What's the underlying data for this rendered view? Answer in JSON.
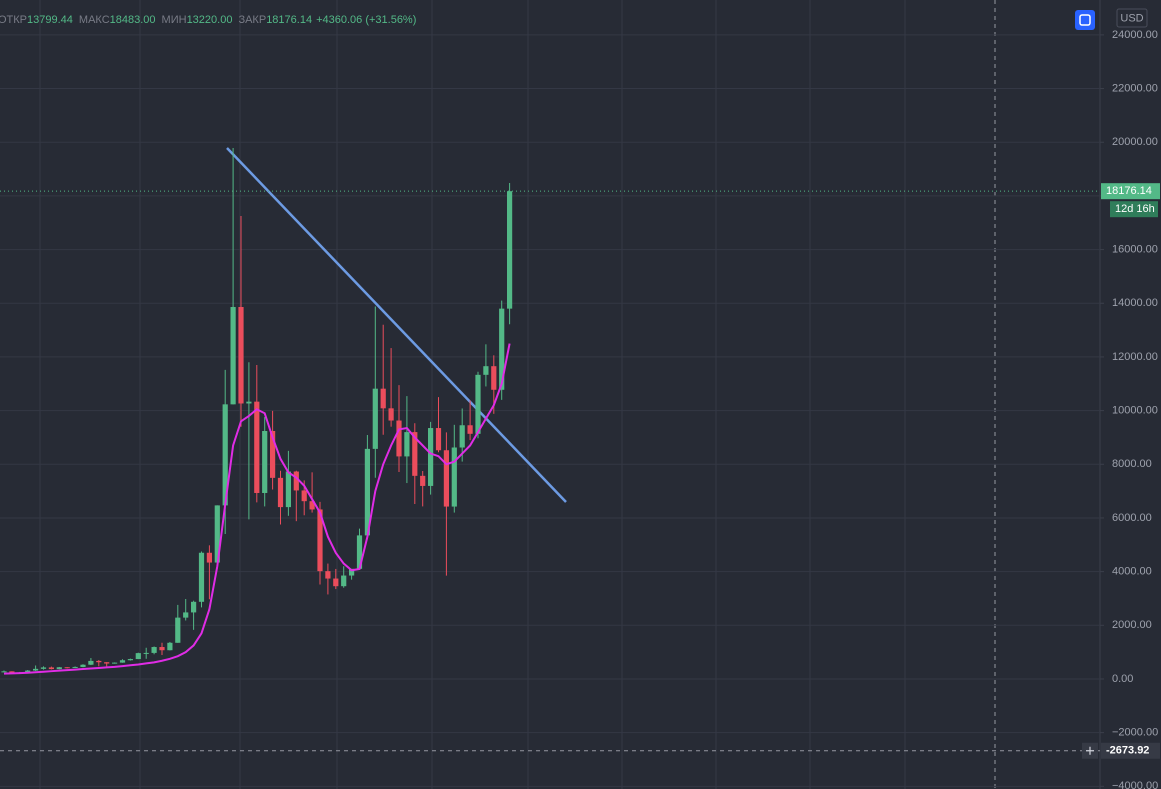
{
  "chart_data": {
    "type": "candlestick",
    "header": [
      {
        "label": "ОТКР",
        "value": "13799.44"
      },
      {
        "label": "МАКС",
        "value": "18483.00"
      },
      {
        "label": "МИН",
        "value": "13220.00"
      },
      {
        "label": "ЗАКР",
        "value": "18176.14"
      }
    ],
    "change": "+4360.06 (+31.56%)",
    "currency": "USD",
    "open": [
      263,
      284,
      230,
      236,
      314,
      377,
      430,
      368,
      437,
      416,
      448,
      531,
      673,
      624,
      575,
      609,
      698,
      742,
      964,
      971,
      1190,
      1071,
      1348,
      2286,
      2480,
      2875,
      4703,
      4338,
      6468,
      10233,
      13860,
      10265,
      10334,
      6930,
      9240,
      7494,
      6404,
      7730,
      7025,
      6625,
      6317,
      4017,
      3742,
      3457,
      3854,
      4105,
      5350,
      8574,
      10817,
      10085,
      9630,
      8293,
      9199,
      7569,
      7193,
      9350,
      8523,
      6424,
      8625,
      9454,
      9135,
      11333,
      11655,
      10776,
      13799.44
    ],
    "high": [
      315,
      286,
      262,
      334,
      502,
      468,
      462,
      448,
      439,
      467,
      548,
      780,
      704,
      627,
      616,
      733,
      758,
      980,
      1163,
      1212,
      1350,
      1380,
      2760,
      2980,
      2917,
      4750,
      4980,
      6470,
      11518,
      19783,
      17250,
      11800,
      11700,
      9760,
      9990,
      7760,
      8500,
      7760,
      7400,
      7700,
      6600,
      4300,
      4100,
      4200,
      4100,
      5600,
      9090,
      13880,
      13200,
      12330,
      10950,
      10540,
      9530,
      7750,
      9580,
      10500,
      9190,
      9470,
      10080,
      10380,
      11450,
      12470,
      12060,
      14100,
      18483
    ],
    "low": [
      253,
      199,
      225,
      236,
      298,
      348,
      354,
      364,
      395,
      412,
      436,
      518,
      470,
      467,
      571,
      604,
      685,
      739,
      752,
      920,
      892,
      1064,
      1348,
      2180,
      1830,
      2670,
      2970,
      4110,
      5400,
      10233,
      9400,
      5947,
      6580,
      6430,
      7060,
      5755,
      6080,
      5880,
      6100,
      6200,
      3520,
      3150,
      3350,
      3400,
      3700,
      4080,
      5350,
      7500,
      9100,
      9400,
      7710,
      7300,
      6520,
      6430,
      6870,
      8450,
      3850,
      6200,
      8100,
      8900,
      8970,
      10900,
      9880,
      10400,
      13220
    ],
    "close": [
      284,
      230,
      236,
      314,
      377,
      430,
      368,
      437,
      416,
      448,
      531,
      673,
      624,
      575,
      609,
      698,
      742,
      964,
      971,
      1190,
      1071,
      1348,
      2286,
      2480,
      2875,
      4703,
      4338,
      6468,
      10233,
      13860,
      10265,
      10334,
      6930,
      9240,
      7494,
      6404,
      7730,
      7025,
      6625,
      6317,
      4017,
      3742,
      3457,
      3854,
      4105,
      5350,
      8574,
      10817,
      10085,
      9630,
      8293,
      9199,
      7569,
      7193,
      9350,
      8523,
      6424,
      8625,
      9454,
      9135,
      11333,
      11655,
      10776,
      13799.44,
      18176.14
    ],
    "colors": {
      "up": "#53b987",
      "down": "#eb4d5c"
    },
    "ma": {
      "color": "#e02ce6",
      "values": [
        200,
        210,
        220,
        230,
        250,
        270,
        290,
        310,
        330,
        350,
        370,
        390,
        410,
        430,
        450,
        480,
        510,
        540,
        580,
        620,
        680,
        750,
        850,
        1000,
        1250,
        1700,
        2600,
        4200,
        6500,
        8700,
        9600,
        9800,
        10050,
        9900,
        9000,
        8200,
        7700,
        7500,
        7200,
        6700,
        6200,
        5300,
        4700,
        4300,
        4050,
        4100,
        5300,
        7000,
        8000,
        8700,
        9300,
        9350,
        9000,
        8700,
        8400,
        8300,
        8000,
        8100,
        8400,
        8700,
        9200,
        9700,
        10200,
        11000,
        12500
      ]
    },
    "ylim": [
      -4100,
      25300
    ],
    "yticks": [
      {
        "value": -4000,
        "label": "−4000.00"
      },
      {
        "value": -2000,
        "label": "−2000.00"
      },
      {
        "value": 0,
        "label": "0.00"
      },
      {
        "value": 2000,
        "label": "2000.00"
      },
      {
        "value": 4000,
        "label": "4000.00"
      },
      {
        "value": 6000,
        "label": "6000.00"
      },
      {
        "value": 8000,
        "label": "8000.00"
      },
      {
        "value": 10000,
        "label": "10000.00"
      },
      {
        "value": 12000,
        "label": "12000.00"
      },
      {
        "value": 14000,
        "label": "14000.00"
      },
      {
        "value": 16000,
        "label": "16000.00"
      },
      {
        "value": 18000,
        "label": "18000.00"
      },
      {
        "value": 20000,
        "label": "20000.00"
      },
      {
        "value": 22000,
        "label": "22000.00"
      },
      {
        "value": 24000,
        "label": "24000.00"
      }
    ],
    "grid": true,
    "last_price": 18176.14,
    "countdown": "12d 16h",
    "crosshair": -2673.92
  }
}
